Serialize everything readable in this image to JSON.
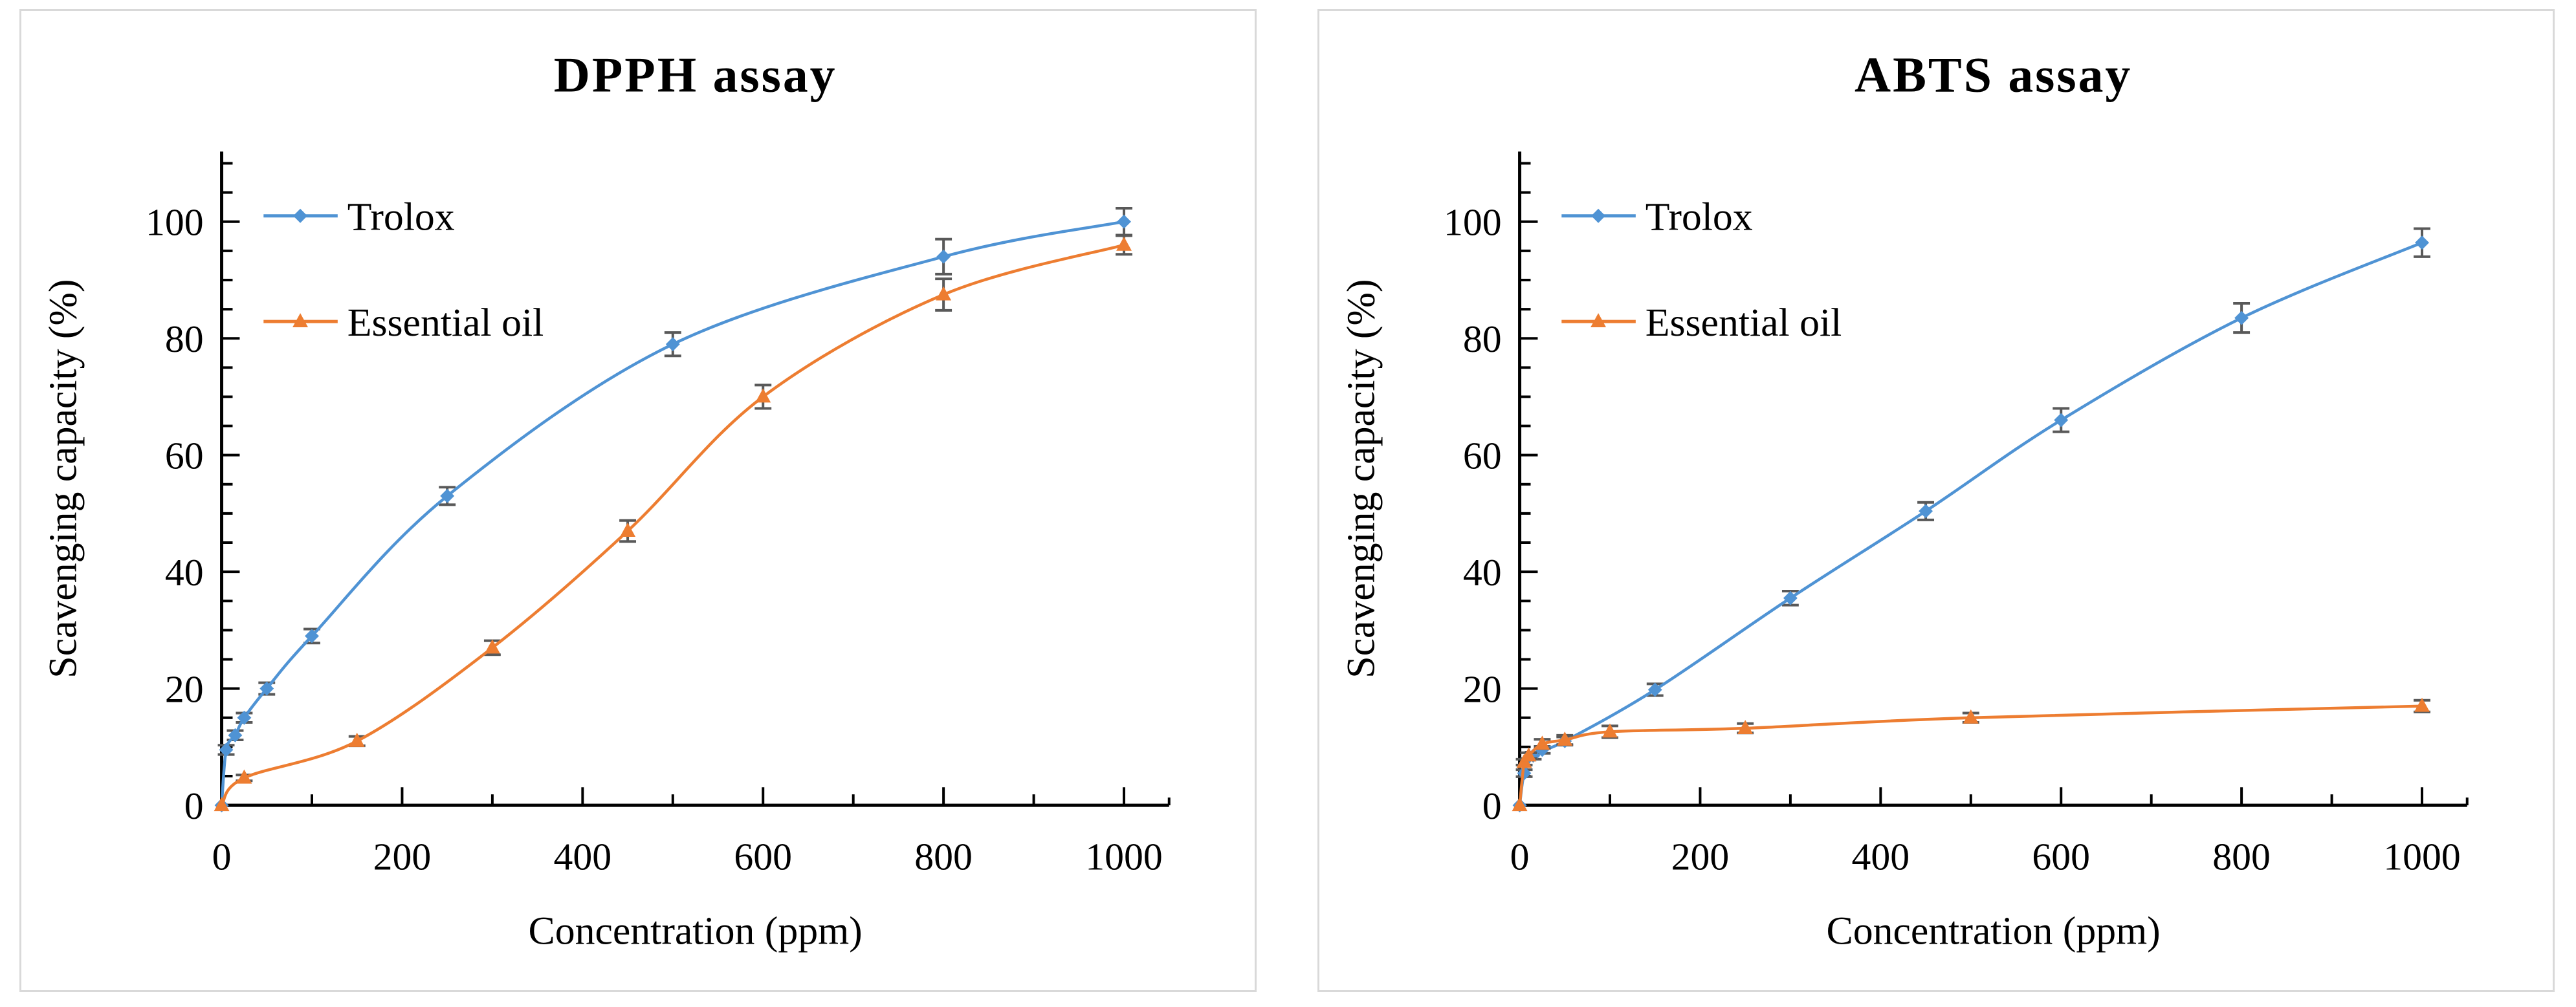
{
  "figure": {
    "background": "#ffffff",
    "panel_border_color": "#d9d9d9"
  },
  "chart_data": [
    {
      "type": "line",
      "title": "DPPH assay",
      "xlabel": "Concentration  (ppm)",
      "ylabel": "Scavenging capacity (%)",
      "xlim": [
        0,
        1050
      ],
      "ylim": [
        0,
        112
      ],
      "xticks": [
        0,
        200,
        400,
        600,
        800,
        1000
      ],
      "xminor_step": 100,
      "yticks": [
        0,
        20,
        40,
        60,
        80,
        100
      ],
      "yminor_step": 5,
      "grid": false,
      "legend_position": "upper-left",
      "error_bar_color": "#595959",
      "series": [
        {
          "name": "Trolox",
          "color": "#4f93d4",
          "marker": "diamond",
          "x": [
            0,
            5,
            15,
            25,
            50,
            100,
            250,
            500,
            800,
            1000
          ],
          "y": [
            0,
            9.5,
            12,
            15,
            20,
            29,
            53,
            79,
            94,
            100
          ],
          "yerr": [
            0,
            0.8,
            0.8,
            0.8,
            1,
            1.2,
            1.5,
            2,
            3,
            2.3
          ]
        },
        {
          "name": "Essential oil",
          "color": "#ed7d31",
          "marker": "triangle",
          "x": [
            0,
            25,
            150,
            300,
            450,
            600,
            800,
            1000
          ],
          "y": [
            0,
            4.7,
            11,
            27,
            47,
            70,
            87.5,
            96
          ],
          "yerr": [
            0,
            0.5,
            0.8,
            1.2,
            1.8,
            2,
            2.7,
            1.6
          ]
        }
      ]
    },
    {
      "type": "line",
      "title": "ABTS assay",
      "xlabel": "Concentration  (ppm)",
      "ylabel": "Scavenging capacity (%)",
      "xlim": [
        0,
        1050
      ],
      "ylim": [
        0,
        112
      ],
      "xticks": [
        0,
        200,
        400,
        600,
        800,
        1000
      ],
      "xminor_step": 100,
      "yticks": [
        0,
        20,
        40,
        60,
        80,
        100
      ],
      "yminor_step": 5,
      "grid": false,
      "legend_position": "upper-left",
      "error_bar_color": "#595959",
      "series": [
        {
          "name": "Trolox",
          "color": "#4f93d4",
          "marker": "diamond",
          "x": [
            0,
            5,
            15,
            25,
            50,
            150,
            300,
            450,
            600,
            800,
            1000
          ],
          "y": [
            0,
            5.5,
            8.5,
            9.5,
            11,
            19.8,
            35.5,
            50.4,
            66,
            83.5,
            96.4
          ],
          "yerr": [
            0,
            0.6,
            0.6,
            0.6,
            0.7,
            1,
            1.2,
            1.5,
            2,
            2.5,
            2.4
          ]
        },
        {
          "name": "Essential oil",
          "color": "#ed7d31",
          "marker": "triangle",
          "x": [
            0,
            5,
            10,
            25,
            50,
            100,
            250,
            500,
            1000
          ],
          "y": [
            0,
            7.4,
            8.5,
            10.5,
            11.2,
            12.6,
            13.2,
            15,
            17
          ],
          "yerr": [
            0,
            0.5,
            0.5,
            0.8,
            0.8,
            1,
            0.8,
            0.8,
            1
          ]
        }
      ]
    }
  ]
}
